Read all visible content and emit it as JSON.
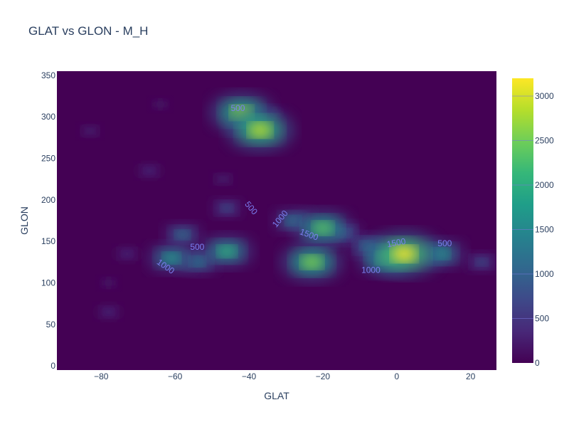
{
  "chart_data": {
    "type": "heatmap",
    "title": "GLAT vs GLON - M_H",
    "xlabel": "GLAT",
    "ylabel": "GLON",
    "xlim": [
      -92,
      27
    ],
    "ylim": [
      -5,
      355
    ],
    "x_ticks": [
      -80,
      -60,
      -40,
      -20,
      0,
      20
    ],
    "x_tick_labels": [
      "−80",
      "−60",
      "−40",
      "−20",
      "0",
      "20"
    ],
    "y_ticks": [
      0,
      50,
      100,
      150,
      200,
      250,
      300,
      350
    ],
    "y_tick_labels": [
      "0",
      "50",
      "100",
      "150",
      "200",
      "250",
      "300",
      "350"
    ],
    "colorscale": "Viridis",
    "colorbar": {
      "range": [
        0,
        3200
      ],
      "ticks": [
        0,
        500,
        1000,
        1500,
        2000,
        2500,
        3000
      ],
      "tick_labels": [
        "0",
        "500",
        "1000",
        "1500",
        "2000",
        "2500",
        "3000"
      ]
    },
    "contour_levels": [
      500,
      1000,
      1500
    ],
    "density_peaks": [
      {
        "x": 2,
        "y": 135,
        "value": 3200
      },
      {
        "x": -3,
        "y": 130,
        "value": 2300
      },
      {
        "x": 12,
        "y": 135,
        "value": 1800
      },
      {
        "x": -8,
        "y": 145,
        "value": 1300
      },
      {
        "x": -23,
        "y": 125,
        "value": 2600
      },
      {
        "x": -20,
        "y": 166,
        "value": 2400
      },
      {
        "x": -28,
        "y": 175,
        "value": 1400
      },
      {
        "x": -14,
        "y": 160,
        "value": 1100
      },
      {
        "x": -46,
        "y": 138,
        "value": 2100
      },
      {
        "x": -61,
        "y": 130,
        "value": 1800
      },
      {
        "x": -54,
        "y": 126,
        "value": 1500
      },
      {
        "x": -58,
        "y": 158,
        "value": 1300
      },
      {
        "x": -46,
        "y": 190,
        "value": 900
      },
      {
        "x": -42,
        "y": 305,
        "value": 2700
      },
      {
        "x": -37,
        "y": 284,
        "value": 2900
      },
      {
        "x": 23,
        "y": 125,
        "value": 900
      },
      {
        "x": -78,
        "y": 65,
        "value": 500
      },
      {
        "x": -83,
        "y": 283,
        "value": 400
      },
      {
        "x": -67,
        "y": 235,
        "value": 500
      },
      {
        "x": -47,
        "y": 225,
        "value": 400
      },
      {
        "x": -64,
        "y": 315,
        "value": 300
      },
      {
        "x": -73,
        "y": 135,
        "value": 500
      },
      {
        "x": -78,
        "y": 100,
        "value": 300
      },
      {
        "x": -33,
        "y": 305,
        "value": 300
      }
    ],
    "contour_labels": [
      {
        "text": "500",
        "x": -43,
        "y": 307,
        "angle": 0
      },
      {
        "text": "500",
        "x": -40,
        "y": 188,
        "angle": 50
      },
      {
        "text": "1000",
        "x": -31,
        "y": 175,
        "angle": -50
      },
      {
        "text": "1500",
        "x": -24,
        "y": 155,
        "angle": 20
      },
      {
        "text": "500",
        "x": -54,
        "y": 140,
        "angle": 0
      },
      {
        "text": "1000",
        "x": -63,
        "y": 117,
        "angle": 35
      },
      {
        "text": "1500",
        "x": 0,
        "y": 145,
        "angle": -10
      },
      {
        "text": "500",
        "x": 13,
        "y": 144,
        "angle": 0
      },
      {
        "text": "1000",
        "x": -7,
        "y": 112,
        "angle": 0
      }
    ]
  }
}
